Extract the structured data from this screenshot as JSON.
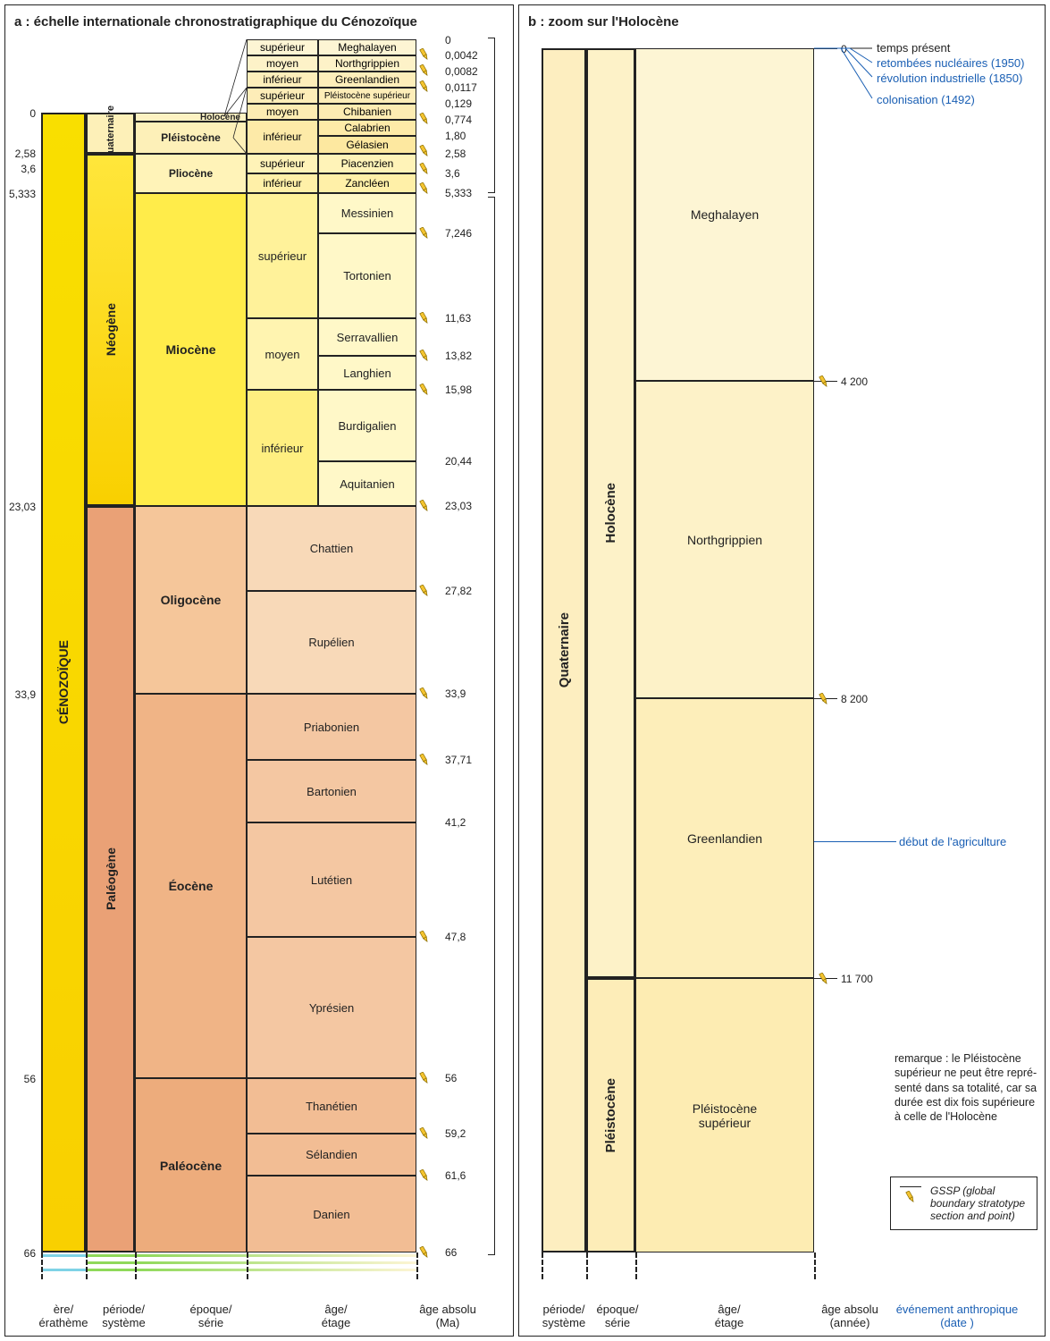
{
  "colors": {
    "cenozoique": "#f9df00",
    "neogene_top": "#ffe63b",
    "neogene_bot": "#f9d000",
    "paleogene": "#eaa176",
    "quaternary": "#fdf0b8",
    "miocene": "#ffec4a",
    "miocene_sub_sup": "#fff29a",
    "miocene_sub_moy": "#fff4b0",
    "miocene_sub_inf": "#ffef80",
    "miocene_stage": "#fff8c8",
    "holocene": "#fdf2c2",
    "pleistocene": "#fdf0b8",
    "pliocene": "#fff3b8",
    "oligocene": "#f5c69a",
    "eocene": "#f0b486",
    "paleocene": "#edac7c",
    "oligo_stage": "#f8d9b8",
    "eocene_stage": "#f4c7a2",
    "paleo_stage": "#f2bd94",
    "quat_col_b": "#fdeec0",
    "holo_col_b": "#fdf2c8",
    "pleisto_col_b": "#fdedb8",
    "megha": "#fdf5d4",
    "north": "#fdf2c8",
    "green": "#fdeeba",
    "pleisto_sup_b": "#fdecb2",
    "event_blue": "#1a5fb4",
    "future_blue": "#7fd3e6",
    "future_green": "#8fd95a"
  },
  "panel_a": {
    "title": "a : échelle internationale chronostratigraphique du Cénozoïque",
    "axis_labels": {
      "ere": "ère/\nérathème",
      "periode": "période/\nsystème",
      "epoque": "époque/\nsérie",
      "age": "âge/\nétage",
      "absolu": "âge absolu\n(Ma)"
    },
    "left_ticks": [
      "0",
      "2,58",
      "3,6",
      "5,333",
      "23,03",
      "33,9",
      "56",
      "66"
    ],
    "right_ticks_upper": [
      "0",
      "0,0042",
      "0,0082",
      "0,0117",
      "0,129",
      "0,774",
      "1,80",
      "2,58",
      "3,6",
      "5,333"
    ],
    "right_ticks_main": [
      "7,246",
      "11,63",
      "13,82",
      "15,98",
      "20,44",
      "23,03",
      "27,82",
      "33,9",
      "37,71",
      "41,2",
      "47,8",
      "56",
      "59,2",
      "61,6",
      "66"
    ],
    "erathem": "CÉNOZOÏQUE",
    "periods": {
      "quaternaire": "Quaternaire",
      "neogene": "Néogène",
      "paleogene": "Paléogène"
    },
    "epochs": {
      "holocene": "Holocène",
      "pleistocene": "Pléistocène",
      "pliocene": "Pliocène",
      "miocene": "Miocène",
      "oligocene": "Oligocène",
      "eocene": "Éocène",
      "paleocene": "Paléocène"
    },
    "callout_labels": {
      "sup": "supérieur",
      "moy": "moyen",
      "inf": "inférieur"
    },
    "callout_stages": {
      "meghalayen": "Meghalayen",
      "northgrippien": "Northgrippien",
      "greenlandien": "Greenlandien",
      "pleisto_sup": "Pléistocène supérieur",
      "chibanien": "Chibanien",
      "calabrien": "Calabrien",
      "gelasien": "Gélasien",
      "piacenzien": "Piacenzien",
      "zancleen": "Zancléen"
    },
    "miocene_stages": [
      "Messinien",
      "Tortonien",
      "Serravallien",
      "Langhien",
      "Burdigalien",
      "Aquitanien"
    ],
    "oligo_stages": [
      "Chattien",
      "Rupélien"
    ],
    "eocene_stages": [
      "Priabonien",
      "Bartonien",
      "Lutétien",
      "Yprésien"
    ],
    "paleo_stages": [
      "Thanétien",
      "Sélandien",
      "Danien"
    ]
  },
  "panel_b": {
    "title": "b : zoom sur l'Holocène",
    "axis_labels": {
      "periode": "période/\nsystème",
      "epoque": "époque/\nsérie",
      "age": "âge/\nétage",
      "absolu": "âge absolu\n(année)",
      "event": "événement anthropique\n(date )"
    },
    "period": "Quaternaire",
    "epochs": {
      "holocene": "Holocène",
      "pleistocene": "Pléistocène"
    },
    "ages": {
      "meghalayen": "Meghalayen",
      "northgrippien": "Northgrippien",
      "greenlandien": "Greenlandien",
      "pleisto_sup": "Pléistocène\nsupérieur"
    },
    "age_ticks": [
      "0",
      "4 200",
      "8 200",
      "11 700"
    ],
    "events": {
      "present": "temps présent",
      "nucleaire": "retombées nucléaires (1950)",
      "revolution": "révolution industrielle (1850)",
      "colonisation": "colonisation (1492)",
      "agriculture": "début de l'agriculture"
    },
    "note": "remarque : le Pléistocène supérieur ne peut être repré-senté dans sa totalité, car sa durée est dix fois supérieure à celle de l'Holocène",
    "legend": "GSSP (global boundary stratotype section and point)"
  }
}
